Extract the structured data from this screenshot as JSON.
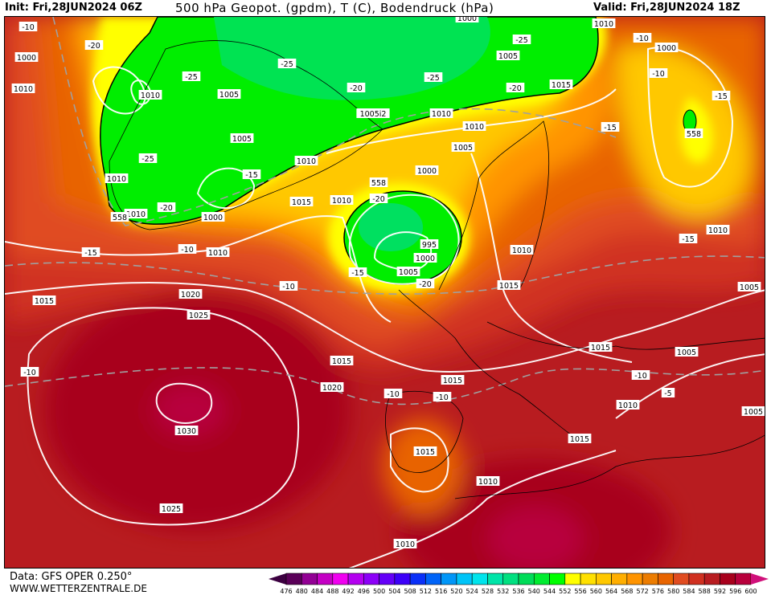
{
  "header": {
    "init": "Init: Fri,28JUN2024 06Z",
    "title": "500 hPa Geopot. (gpdm), T (C), Bodendruck (hPa)",
    "valid": "Valid: Fri,28JUN2024 18Z"
  },
  "footer": {
    "data_source": "Data: GFS OPER 0.250°",
    "website": "WWW.WETTERZENTRALE.DE"
  },
  "legend": {
    "ticks": [
      "476",
      "480",
      "484",
      "488",
      "492",
      "496",
      "500",
      "504",
      "508",
      "512",
      "516",
      "520",
      "524",
      "528",
      "532",
      "536",
      "540",
      "544",
      "552",
      "556",
      "560",
      "564",
      "568",
      "572",
      "576",
      "580",
      "584",
      "588",
      "592",
      "596",
      "600"
    ],
    "colors": [
      "#5a0058",
      "#920094",
      "#c400c4",
      "#f000f0",
      "#b400f0",
      "#8c00f8",
      "#6400f8",
      "#3c00f8",
      "#0a30f8",
      "#0064f8",
      "#0096f8",
      "#00c4f8",
      "#00e4ec",
      "#00e4a8",
      "#00e080",
      "#00dc58",
      "#00ec30",
      "#00ff00",
      "#ffff00",
      "#ffe000",
      "#ffc800",
      "#ffae00",
      "#ff9400",
      "#ec7c00",
      "#e86400",
      "#e04c20",
      "#d03020",
      "#b81c20",
      "#a8001c",
      "#b8003c"
    ],
    "low_arrow_color": "#3c0040",
    "high_arrow_color": "#d0107a"
  },
  "map_labels": [
    "-10",
    "1000",
    "1010",
    "-20",
    "1010",
    "-25",
    "1005",
    "-25",
    "1005",
    "-25",
    "1010",
    "-15",
    "1010",
    "1000",
    "-20",
    "1010",
    "-15",
    "-10",
    "1010",
    "1015",
    "1010",
    "-20",
    "1000",
    "1005",
    "1010",
    "1010",
    "1005i2",
    "-20",
    "-25",
    "1005",
    "-25",
    "-20",
    "1015",
    "1010",
    "1000",
    "1000",
    "-10",
    "-15",
    "-15",
    "558",
    "1010",
    "-15",
    "1005",
    "1010",
    "1015",
    "995",
    "1000",
    "1005",
    "-20",
    "-15",
    "-10",
    "1020",
    "1015",
    "1025",
    "1015",
    "1020",
    "-10",
    "-10",
    "1015",
    "1015",
    "1005",
    "-10",
    "-5",
    "1010",
    "1005",
    "1030",
    "1025",
    "1015",
    "1015",
    "1010",
    "1010",
    "-10",
    "558",
    "558",
    "-10"
  ]
}
